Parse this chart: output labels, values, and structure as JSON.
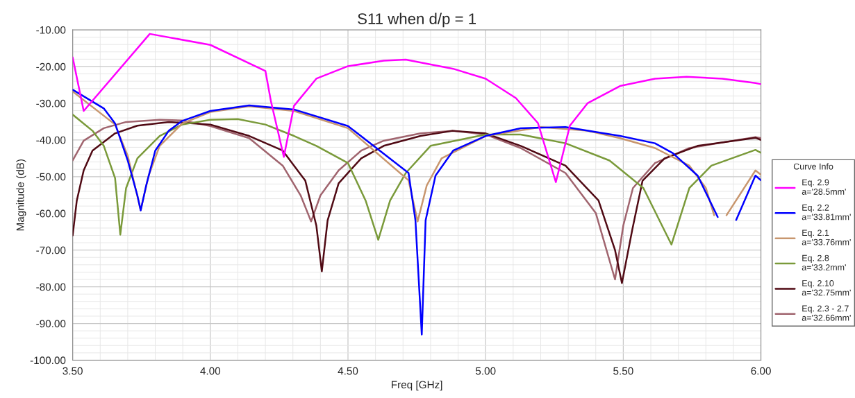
{
  "chart_data": {
    "type": "line",
    "title": "S11 when d/p = 1",
    "xlabel": "Freq [GHz]",
    "ylabel": "Magnitude (dB)",
    "legend_title": "Curve Info",
    "xlim": [
      3.5,
      6.0
    ],
    "ylim": [
      -100,
      -10
    ],
    "xticks": [
      {
        "value": 3.5,
        "label": "3.50"
      },
      {
        "value": 4.0,
        "label": "4.00"
      },
      {
        "value": 4.5,
        "label": "4.50"
      },
      {
        "value": 5.0,
        "label": "5.00"
      },
      {
        "value": 5.5,
        "label": "5.50"
      },
      {
        "value": 6.0,
        "label": "6.00"
      }
    ],
    "yticks": [
      {
        "value": -100,
        "label": "-100.00"
      },
      {
        "value": -90,
        "label": "-90.00"
      },
      {
        "value": -80,
        "label": "-80.00"
      },
      {
        "value": -70,
        "label": "-70.00"
      },
      {
        "value": -60,
        "label": "-60.00"
      },
      {
        "value": -50,
        "label": "-50.00"
      },
      {
        "value": -40,
        "label": "-40.00"
      },
      {
        "value": -30,
        "label": "-30.00"
      },
      {
        "value": -20,
        "label": "-20.00"
      },
      {
        "value": -10,
        "label": "-10.00"
      }
    ],
    "grid": true,
    "legend": "bottom right",
    "marker": "none",
    "line_style": "solid",
    "series": [
      {
        "name": "Eq. 2.9\na='28.5mm'",
        "color": "#ff00ff",
        "x": [
          3.5,
          3.54,
          3.78,
          4.0,
          4.2,
          4.22,
          4.267,
          4.304,
          4.385,
          4.5,
          4.63,
          4.71,
          4.882,
          5.0,
          5.11,
          5.19,
          5.255,
          5.306,
          5.37,
          5.488,
          5.615,
          5.73,
          5.86,
          5.98,
          6.0
        ],
        "values": [
          -17.5,
          -32.1,
          -11.1,
          -14.1,
          -21.2,
          -29.4,
          -44.6,
          -30.7,
          -23.3,
          -19.9,
          -18.4,
          -18.1,
          -20.6,
          -23.3,
          -28.6,
          -35.4,
          -51.5,
          -36.1,
          -30.0,
          -25.3,
          -23.3,
          -22.8,
          -23.3,
          -24.5,
          -24.8
        ]
      },
      {
        "name": "Eq. 2.2\na='33.81mm'",
        "color": "#0000ff",
        "x": [
          3.5,
          3.613,
          3.654,
          3.7,
          3.735,
          3.747,
          3.767,
          3.8,
          3.849,
          3.898,
          4.0,
          4.141,
          4.304,
          4.5,
          4.72,
          4.745,
          4.768,
          4.782,
          4.818,
          4.882,
          5.0,
          5.127,
          5.29,
          5.488,
          5.615,
          5.68,
          5.77,
          5.843,
          5.87,
          5.91,
          5.98,
          6.0
        ],
        "values": [
          -26.3,
          -31.4,
          -35.5,
          -45.6,
          -55.1,
          -59.2,
          -52.4,
          -42.9,
          -37.5,
          -34.8,
          -32.1,
          -30.6,
          -31.7,
          -36.2,
          -49.0,
          -61.9,
          -93.0,
          -61.9,
          -49.7,
          -42.9,
          -38.9,
          -36.8,
          -36.5,
          -38.9,
          -40.9,
          -43.6,
          -49.7,
          -61.0,
          null,
          -61.8,
          -49.7,
          -51.0
        ]
      },
      {
        "name": "Eq. 2.1\na='33.76mm'",
        "color": "#c8966e",
        "x": [
          3.5,
          3.654,
          3.7,
          3.747,
          3.776,
          3.816,
          3.898,
          4.0,
          4.141,
          4.304,
          4.5,
          4.72,
          4.753,
          4.786,
          4.84,
          5.0,
          5.2,
          5.37,
          5.488,
          5.615,
          5.74,
          5.8,
          5.83,
          5.85,
          5.875,
          5.98,
          6.0
        ],
        "values": [
          -26.8,
          -35.8,
          -44.3,
          -59.1,
          -49.7,
          -41.6,
          -35.5,
          -32.4,
          -30.8,
          -32.1,
          -36.8,
          -51.0,
          -62.2,
          -52.4,
          -45.0,
          -38.9,
          -36.5,
          -37.5,
          -39.5,
          -42.2,
          -47.0,
          -53.1,
          -60.5,
          null,
          -60.5,
          -48.3,
          -49.5
        ]
      },
      {
        "name": "Eq. 2.8\na='33.2mm'",
        "color": "#7a9a3a",
        "x": [
          3.5,
          3.572,
          3.613,
          3.654,
          3.673,
          3.694,
          3.735,
          3.816,
          3.898,
          4.0,
          4.1,
          4.2,
          4.304,
          4.385,
          4.5,
          4.564,
          4.61,
          4.653,
          4.71,
          4.8,
          5.0,
          5.127,
          5.29,
          5.45,
          5.573,
          5.675,
          5.74,
          5.82,
          5.98,
          6.0
        ],
        "values": [
          -33.1,
          -37.5,
          -41.6,
          -50.4,
          -65.8,
          -53.1,
          -45.0,
          -38.9,
          -35.8,
          -34.5,
          -34.3,
          -35.8,
          -38.9,
          -41.6,
          -46.3,
          -56.5,
          -67.2,
          -56.5,
          -49.0,
          -41.6,
          -38.5,
          -38.5,
          -40.9,
          -45.6,
          -53.1,
          -68.5,
          -53.1,
          -47.0,
          -42.7,
          -43.5
        ]
      },
      {
        "name": "Eq. 2.10\na='32.75mm'",
        "color": "#500a14",
        "x": [
          3.5,
          3.515,
          3.54,
          3.572,
          3.654,
          3.735,
          3.849,
          4.0,
          4.141,
          4.263,
          4.345,
          4.385,
          4.405,
          4.426,
          4.466,
          4.548,
          4.63,
          4.764,
          4.88,
          5.0,
          5.127,
          5.29,
          5.41,
          5.47,
          5.495,
          5.533,
          5.57,
          5.65,
          5.77,
          5.98,
          6.0
        ],
        "values": [
          -66.0,
          -56.5,
          -48.3,
          -42.9,
          -38.2,
          -36.1,
          -35.1,
          -35.8,
          -38.9,
          -42.9,
          -51.1,
          -63.3,
          -75.8,
          -61.9,
          -51.8,
          -45.0,
          -41.6,
          -38.9,
          -37.5,
          -38.2,
          -41.6,
          -47.0,
          -56.5,
          -70.0,
          -79.0,
          -64.3,
          -51.1,
          -45.0,
          -41.6,
          -39.4,
          -40.0
        ]
      },
      {
        "name": "Eq. 2.3 - 2.7\na='32.66mm'",
        "color": "#a0646e",
        "x": [
          3.5,
          3.54,
          3.613,
          3.694,
          3.816,
          3.898,
          4.0,
          4.141,
          4.263,
          4.328,
          4.366,
          4.4,
          4.466,
          4.548,
          4.63,
          4.764,
          4.88,
          5.0,
          5.127,
          5.29,
          5.4,
          5.47,
          5.5,
          5.535,
          5.615,
          5.74,
          5.98,
          6.0
        ],
        "values": [
          -45.6,
          -40.2,
          -36.8,
          -35.1,
          -34.5,
          -34.7,
          -36.2,
          -39.5,
          -47.0,
          -55.1,
          -62.2,
          -55.1,
          -48.3,
          -42.9,
          -40.2,
          -38.2,
          -37.5,
          -38.5,
          -42.2,
          -49.0,
          -59.9,
          -78.0,
          -63.3,
          -53.1,
          -46.3,
          -42.2,
          -39.2,
          -39.5
        ]
      }
    ]
  }
}
